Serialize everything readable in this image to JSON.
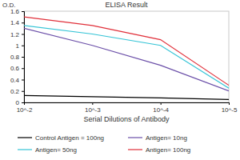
{
  "chart_data": {
    "type": "line",
    "title": "ELISA Result",
    "y_label": "O.D.",
    "x_label": "Serial Dilutions of Antibody",
    "log": "x",
    "x": [
      0.01,
      0.001,
      0.0001,
      1e-05
    ],
    "xlim": [
      0.01,
      1e-05
    ],
    "xticks": [
      {
        "value": 0.01,
        "label": "10^-2"
      },
      {
        "value": 0.001,
        "label": "10^-3"
      },
      {
        "value": 0.0001,
        "label": "10^-4"
      },
      {
        "value": 1e-05,
        "label": "10^-5"
      }
    ],
    "ylim": [
      0,
      1.6
    ],
    "yticks": [
      0,
      0.2,
      0.4,
      0.6,
      0.8,
      1,
      1.2,
      1.4,
      1.6
    ],
    "grid": false,
    "legend": "bottom",
    "series": [
      {
        "name": "Control Antigen = 100ng",
        "color": "#000000",
        "values": [
          0.12,
          0.1,
          0.08,
          0.05
        ]
      },
      {
        "name": "Antigen= 10ng",
        "color": "#6b4fa8",
        "values": [
          1.3,
          1.0,
          0.65,
          0.2
        ]
      },
      {
        "name": "Antigen= 50ng",
        "color": "#35c4d6",
        "values": [
          1.35,
          1.2,
          1.0,
          0.25
        ]
      },
      {
        "name": "Antigen= 100ng",
        "color": "#e0303a",
        "values": [
          1.5,
          1.35,
          1.1,
          0.3
        ]
      }
    ]
  }
}
